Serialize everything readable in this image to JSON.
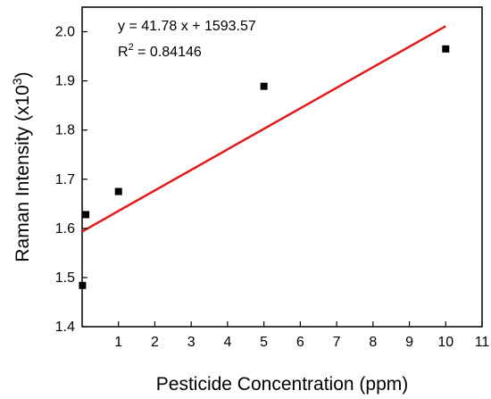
{
  "chart_data": {
    "type": "scatter",
    "xlabel": "Pesticide Concentration (ppm)",
    "ylabel": {
      "main": "Raman Intensity (x10",
      "sup": "3",
      "end": ")"
    },
    "xlim": [
      0,
      11
    ],
    "ylim": [
      1.4,
      2.05
    ],
    "x_ticks": [
      "1",
      "2",
      "3",
      "4",
      "5",
      "6",
      "7",
      "8",
      "9",
      "10",
      "11"
    ],
    "y_ticks": [
      "1.4",
      "1.5",
      "1.6",
      "1.7",
      "1.8",
      "1.9",
      "2.0"
    ],
    "points": [
      {
        "x": 0.01,
        "y": 1.484
      },
      {
        "x": 0.1,
        "y": 1.628
      },
      {
        "x": 1,
        "y": 1.675
      },
      {
        "x": 5,
        "y": 1.889
      },
      {
        "x": 10,
        "y": 1.965
      }
    ],
    "fit": {
      "slope": 41.78,
      "intercept": 1593.57,
      "x_range": [
        0,
        10
      ],
      "color": "#e31a1c"
    },
    "equation": "y = 41.78 x + 1593.57",
    "r_squared": {
      "prefix": "R",
      "sup": "2",
      "value": " = 0.84146"
    },
    "grid": false,
    "marker_color": "#000000"
  }
}
